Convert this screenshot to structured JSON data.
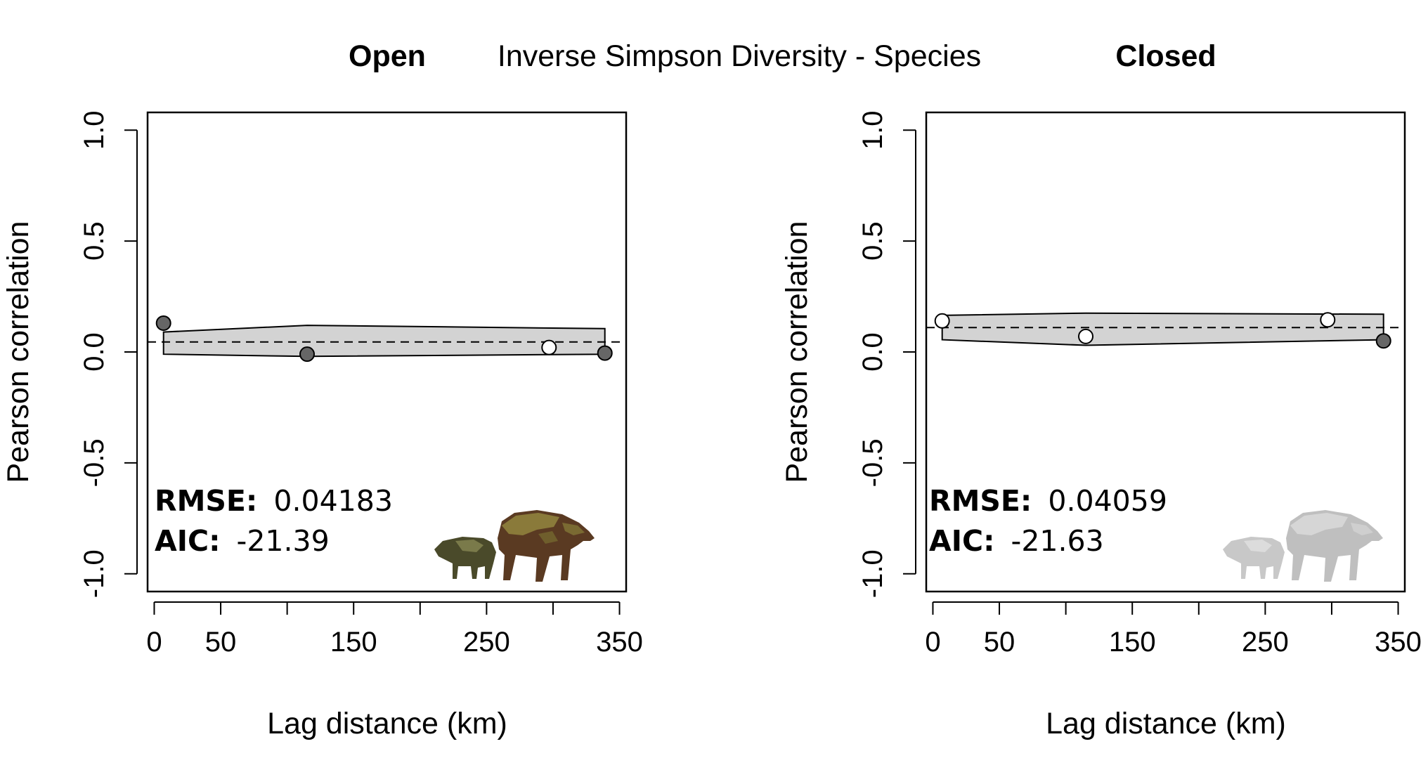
{
  "main_title": "Inverse Simpson Diversity - Species",
  "colors": {
    "band_fill": "#d3d3d3",
    "point_filled": "#666666",
    "point_open": "#ffffff",
    "mean_line": "#000000",
    "silhouette_color_peccary": "#4a4a2a",
    "silhouette_color_tapir": "#5a3a22",
    "silhouette_grey": "#bfbfbf"
  },
  "chart_data": [
    {
      "type": "scatter",
      "panel_title": "Open",
      "xlabel": "Lag distance (km)",
      "ylabel": "Pearson correlation",
      "xlim": [
        -5,
        355
      ],
      "ylim": [
        -1.08,
        1.08
      ],
      "xticks": [
        0,
        50,
        100,
        150,
        200,
        250,
        300,
        350
      ],
      "xtick_labels": [
        "0",
        "50",
        "",
        "150",
        "",
        "250",
        "",
        "350"
      ],
      "yticks": [
        -1.0,
        -0.5,
        0.0,
        0.5,
        1.0
      ],
      "ytick_labels": [
        "-1.0",
        "-0.5",
        "0.0",
        "0.5",
        "1.0"
      ],
      "points": [
        {
          "x": 7,
          "y": 0.13,
          "filled": true
        },
        {
          "x": 115,
          "y": -0.01,
          "filled": true
        },
        {
          "x": 297,
          "y": 0.02,
          "filled": false
        },
        {
          "x": 339,
          "y": -0.005,
          "filled": true
        }
      ],
      "band": {
        "x": [
          7,
          115,
          339
        ],
        "upper": [
          0.09,
          0.12,
          0.105
        ],
        "lower": [
          -0.01,
          -0.02,
          -0.01
        ]
      },
      "mean_line_y": 0.045,
      "rmse_label": "RMSE:",
      "rmse_value": "0.04183",
      "aic_label": "AIC:",
      "aic_value": "-21.39",
      "silhouette_style": "color"
    },
    {
      "type": "scatter",
      "panel_title": "Closed",
      "xlabel": "Lag distance (km)",
      "ylabel": "Pearson correlation",
      "xlim": [
        -5,
        355
      ],
      "ylim": [
        -1.08,
        1.08
      ],
      "xticks": [
        0,
        50,
        100,
        150,
        200,
        250,
        300,
        350
      ],
      "xtick_labels": [
        "0",
        "50",
        "",
        "150",
        "",
        "250",
        "",
        "350"
      ],
      "yticks": [
        -1.0,
        -0.5,
        0.0,
        0.5,
        1.0
      ],
      "ytick_labels": [
        "-1.0",
        "-0.5",
        "0.0",
        "0.5",
        "1.0"
      ],
      "points": [
        {
          "x": 7,
          "y": 0.14,
          "filled": false
        },
        {
          "x": 115,
          "y": 0.07,
          "filled": false
        },
        {
          "x": 297,
          "y": 0.145,
          "filled": false
        },
        {
          "x": 339,
          "y": 0.05,
          "filled": true
        }
      ],
      "band": {
        "x": [
          7,
          115,
          339
        ],
        "upper": [
          0.165,
          0.175,
          0.17
        ],
        "lower": [
          0.055,
          0.03,
          0.055
        ]
      },
      "mean_line_y": 0.11,
      "rmse_label": "RMSE:",
      "rmse_value": "0.04059",
      "aic_label": "AIC:",
      "aic_value": "-21.63",
      "silhouette_style": "grey"
    }
  ]
}
